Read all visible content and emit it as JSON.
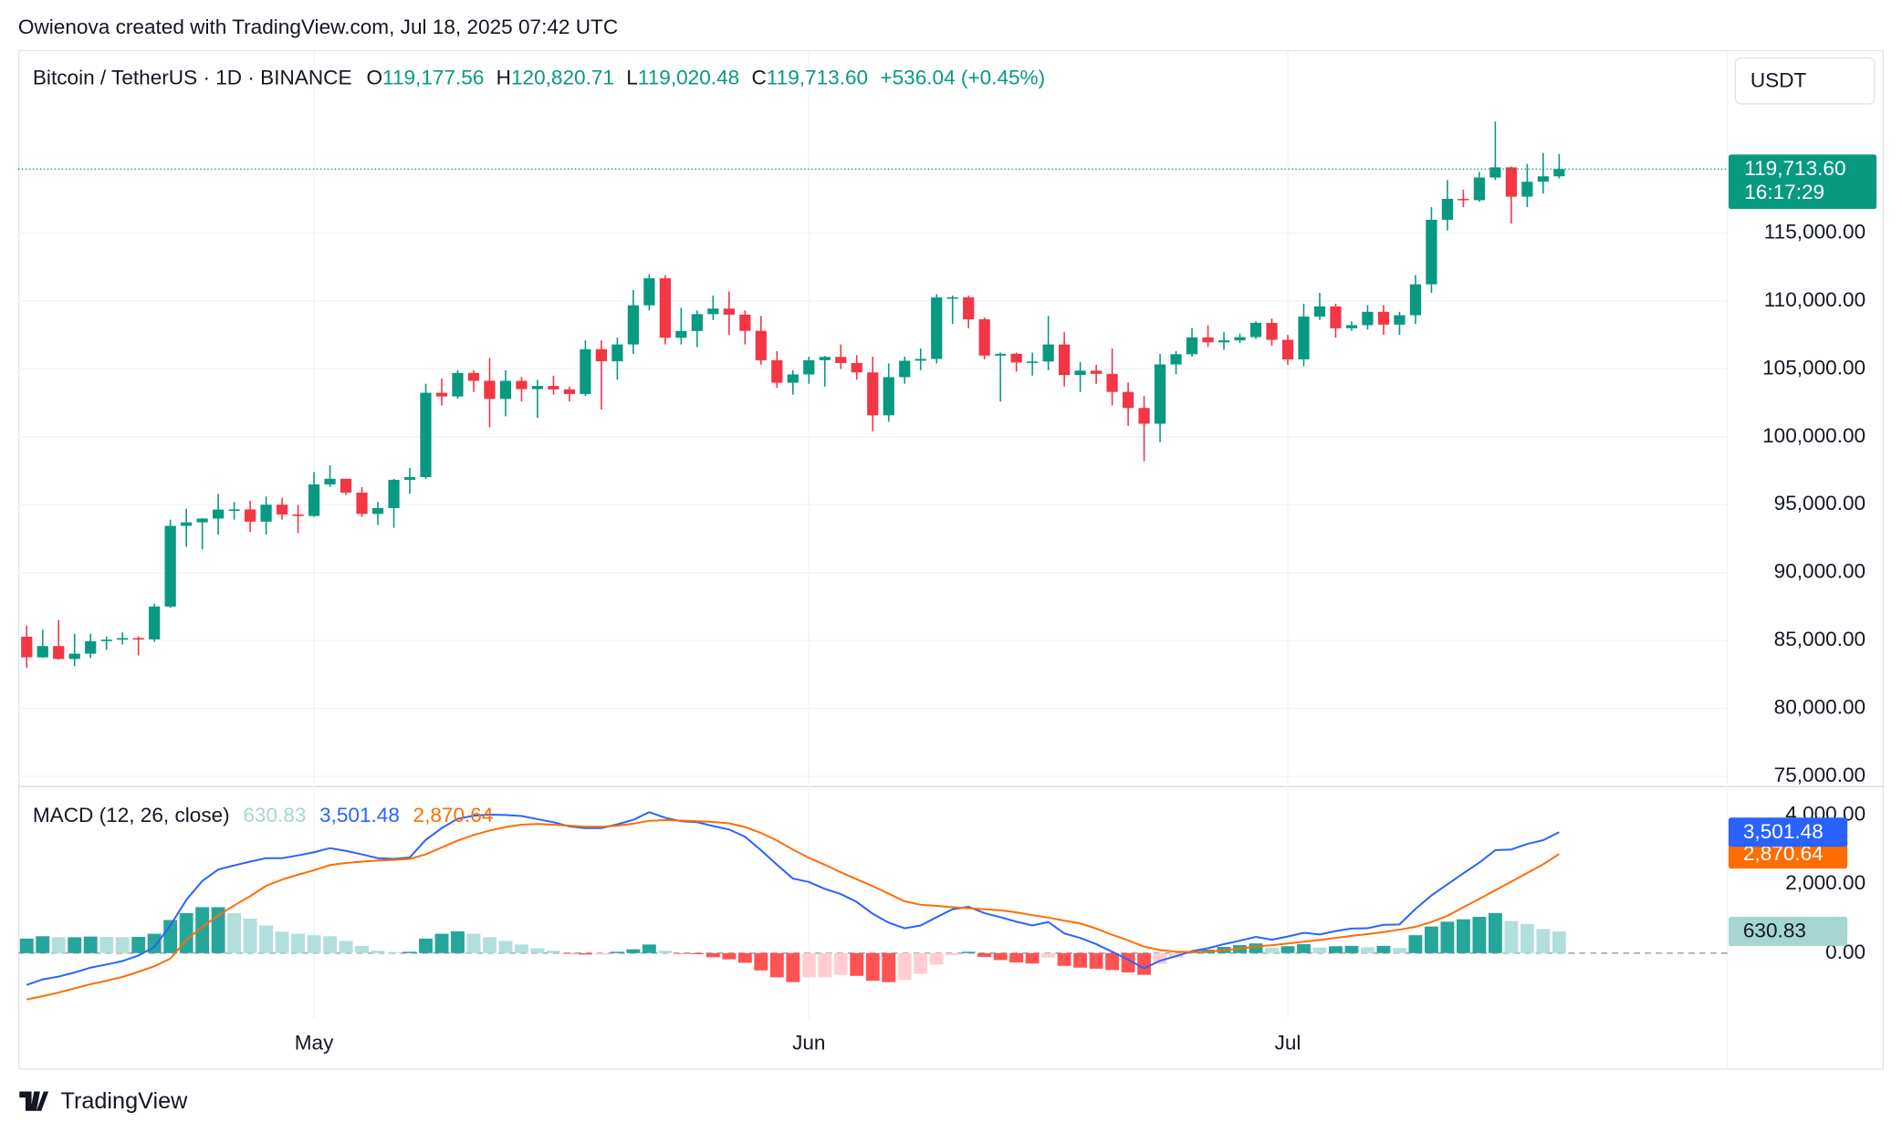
{
  "attribution": "Owienova created with TradingView.com, Jul 18, 2025 07:42 UTC",
  "brand": "TradingView",
  "currency": "USDT",
  "chart_data": [
    {
      "type": "candlestick",
      "title": "Bitcoin / TetherUS · 1D · BINANCE",
      "ohlc_labels": [
        {
          "name": "O",
          "value": "119,177.56"
        },
        {
          "name": "H",
          "value": "120,820.71"
        },
        {
          "name": "L",
          "value": "119,020.48"
        },
        {
          "name": "C",
          "value": "119,713.60"
        }
      ],
      "change_label": "+536.04 (+0.45%)",
      "last_price_label": "119,713.60",
      "countdown": "16:17:29",
      "up_color": "#089981",
      "down_color": "#f23645",
      "open": [
        85280,
        83760,
        84590,
        83640,
        84030,
        84950,
        85060,
        85180,
        85080,
        87500,
        93440,
        93700,
        93980,
        94640,
        94650,
        93750,
        95000,
        94280,
        94170,
        96490,
        96910,
        95890,
        94320,
        94750,
        96830,
        97030,
        103240,
        102970,
        104700,
        104120,
        102790,
        104120,
        103510,
        103740,
        103490,
        103150,
        106450,
        105560,
        106800,
        109680,
        111670,
        107290,
        107790,
        109030,
        109440,
        108990,
        107800,
        105640,
        103980,
        104590,
        105640,
        105880,
        105430,
        104740,
        101580,
        104390,
        105600,
        105730,
        110260,
        110270,
        108650,
        105980,
        106110,
        105470,
        105540,
        106800,
        104550,
        104870,
        104630,
        103300,
        102120,
        100960,
        105330,
        106080,
        107320,
        106950,
        107100,
        107340,
        108390,
        107140,
        105700,
        108850,
        109600,
        107990,
        108220,
        109200,
        108260,
        108950,
        111230,
        115980,
        117520,
        117420,
        119090,
        119840,
        117680,
        118780,
        119177.56
      ],
      "high": [
        86100,
        85800,
        86500,
        85500,
        85500,
        85300,
        85600,
        85300,
        87700,
        93900,
        94700,
        94000,
        95800,
        95200,
        95300,
        95600,
        95500,
        95000,
        97400,
        97900,
        96900,
        96300,
        95200,
        96900,
        97700,
        103900,
        104300,
        104900,
        104900,
        105800,
        104900,
        104400,
        104200,
        104500,
        103700,
        107100,
        107100,
        107300,
        110800,
        111980,
        111900,
        109500,
        109300,
        110400,
        110700,
        109300,
        108900,
        106300,
        104900,
        105900,
        105950,
        106800,
        106000,
        105900,
        105400,
        105900,
        106500,
        110500,
        110400,
        110400,
        108800,
        106200,
        106200,
        106200,
        108900,
        107700,
        105500,
        105300,
        106500,
        104000,
        103000,
        106100,
        106300,
        108000,
        108200,
        107700,
        107600,
        108500,
        108700,
        107500,
        109800,
        110600,
        109800,
        108500,
        109700,
        109700,
        109200,
        111900,
        116900,
        118900,
        118200,
        119500,
        123218,
        119900,
        120100,
        120900,
        120820.71
      ],
      "low": [
        83000,
        83700,
        83600,
        83100,
        83700,
        84300,
        84700,
        83900,
        84900,
        87400,
        91900,
        91700,
        92800,
        93900,
        93000,
        92800,
        93900,
        92900,
        94100,
        96300,
        95700,
        94100,
        93500,
        93300,
        95800,
        96900,
        102300,
        102800,
        103300,
        100700,
        101500,
        102600,
        101400,
        103100,
        102600,
        103000,
        102000,
        104200,
        106100,
        109300,
        106800,
        106800,
        106600,
        108600,
        107500,
        106800,
        105300,
        103600,
        103100,
        103900,
        103700,
        105000,
        104200,
        100400,
        101100,
        103900,
        104900,
        105400,
        108300,
        108000,
        105700,
        102600,
        104800,
        104500,
        104900,
        103700,
        103300,
        103900,
        102300,
        100800,
        98200,
        99600,
        104600,
        105900,
        106600,
        106400,
        106900,
        107200,
        106700,
        105300,
        105200,
        108600,
        107300,
        107800,
        107900,
        107500,
        107500,
        108300,
        110600,
        115200,
        116900,
        117300,
        118900,
        115700,
        116900,
        117900,
        119020.48
      ],
      "close": [
        83760,
        84590,
        83640,
        84030,
        84950,
        85060,
        85180,
        85080,
        87500,
        93440,
        93700,
        93980,
        94640,
        94650,
        93750,
        95000,
        94280,
        94170,
        96490,
        96910,
        95890,
        94320,
        94750,
        96830,
        97030,
        103240,
        102970,
        104700,
        104120,
        102790,
        104120,
        103510,
        103740,
        103490,
        103150,
        106450,
        105560,
        106800,
        109680,
        111670,
        107290,
        107790,
        109030,
        109440,
        108990,
        107800,
        105640,
        103980,
        104590,
        105640,
        105880,
        105430,
        104740,
        101580,
        104390,
        105600,
        105730,
        110260,
        110270,
        108650,
        105980,
        106110,
        105470,
        105540,
        106800,
        104550,
        104870,
        104630,
        103300,
        102120,
        100960,
        105330,
        106080,
        107320,
        106950,
        107100,
        107340,
        108390,
        107140,
        105700,
        108850,
        109600,
        107990,
        108220,
        109200,
        108260,
        108950,
        111230,
        115980,
        117520,
        117420,
        119090,
        119840,
        117680,
        118780,
        119180,
        119713.6
      ],
      "ylim": [
        74290,
        128390
      ],
      "yticks": [
        {
          "value": 75000,
          "label": "75,000.00"
        },
        {
          "value": 80000,
          "label": "80,000.00"
        },
        {
          "value": 85000,
          "label": "85,000.00"
        },
        {
          "value": 90000,
          "label": "90,000.00"
        },
        {
          "value": 95000,
          "label": "95,000.00"
        },
        {
          "value": 100000,
          "label": "100,000.00"
        },
        {
          "value": 105000,
          "label": "105,000.00"
        },
        {
          "value": 110000,
          "label": "110,000.00"
        },
        {
          "value": 115000,
          "label": "115,000.00"
        }
      ],
      "xticks": [
        {
          "value": 18,
          "label": "May"
        },
        {
          "value": 49,
          "label": "Jun"
        },
        {
          "value": 79,
          "label": "Jul"
        }
      ],
      "grid": true
    },
    {
      "type": "macd",
      "title": "MACD (12, 26, close)",
      "histogram_colors": [
        "#26a69a",
        "#b2dfdb",
        "#ffcdd2",
        "#ff5252"
      ],
      "series": [
        {
          "color": "#a5d6d0",
          "last_label": "630.83",
          "values": [
            420,
            490,
            460,
            460,
            480,
            470,
            460,
            470,
            560,
            960,
            1160,
            1330,
            1330,
            1160,
            1000,
            800,
            620,
            560,
            520,
            490,
            350,
            210,
            70,
            30,
            40,
            420,
            560,
            630,
            560,
            460,
            350,
            250,
            140,
            70,
            -20,
            -40,
            -40,
            40,
            110,
            250,
            70,
            -20,
            -30,
            -120,
            -180,
            -280,
            -500,
            -700,
            -840,
            -700,
            -700,
            -630,
            -660,
            -800,
            -840,
            -780,
            -600,
            -330,
            -60,
            40,
            -110,
            -200,
            -270,
            -300,
            -130,
            -370,
            -420,
            -450,
            -490,
            -560,
            -630,
            -310,
            -130,
            30,
            100,
            180,
            230,
            280,
            160,
            200,
            260,
            160,
            200,
            210,
            170,
            210,
            150,
            520,
            770,
            910,
            980,
            1050,
            1160,
            930,
            840,
            700,
            630.83
          ]
        },
        {
          "color": "#2962ff",
          "last_label": "3,501.48",
          "values": [
            -920,
            -760,
            -680,
            -560,
            -420,
            -330,
            -230,
            -70,
            180,
            800,
            1540,
            2090,
            2420,
            2540,
            2650,
            2750,
            2750,
            2830,
            2920,
            3040,
            2960,
            2860,
            2750,
            2730,
            2770,
            3280,
            3620,
            3890,
            3980,
            4010,
            4000,
            3970,
            3880,
            3790,
            3670,
            3620,
            3620,
            3730,
            3860,
            4080,
            3920,
            3820,
            3790,
            3680,
            3580,
            3370,
            2980,
            2560,
            2160,
            2060,
            1860,
            1710,
            1480,
            1140,
            880,
            720,
            800,
            1040,
            1270,
            1340,
            1160,
            1040,
            910,
            800,
            900,
            570,
            440,
            260,
            40,
            -190,
            -440,
            -220,
            -90,
            60,
            140,
            260,
            360,
            470,
            390,
            480,
            590,
            540,
            640,
            710,
            720,
            820,
            830,
            1280,
            1670,
            1990,
            2310,
            2620,
            2980,
            3000,
            3160,
            3270,
            3501.48
          ]
        },
        {
          "color": "#ff6d00",
          "last_label": "2,870.64",
          "values": [
            -1340,
            -1250,
            -1140,
            -1020,
            -900,
            -800,
            -690,
            -540,
            -380,
            -160,
            380,
            760,
            1090,
            1380,
            1650,
            1950,
            2130,
            2270,
            2400,
            2550,
            2610,
            2650,
            2680,
            2700,
            2730,
            2860,
            3060,
            3260,
            3420,
            3550,
            3650,
            3720,
            3740,
            3720,
            3690,
            3660,
            3660,
            3690,
            3750,
            3830,
            3850,
            3840,
            3820,
            3800,
            3760,
            3650,
            3480,
            3260,
            3000,
            2760,
            2560,
            2340,
            2140,
            1940,
            1720,
            1500,
            1400,
            1370,
            1330,
            1300,
            1270,
            1240,
            1180,
            1100,
            1030,
            940,
            860,
            710,
            530,
            370,
            190,
            90,
            40,
            30,
            40,
            80,
            130,
            190,
            230,
            280,
            330,
            380,
            440,
            500,
            550,
            610,
            680,
            760,
            900,
            1080,
            1330,
            1570,
            1820,
            2070,
            2320,
            2570,
            2870.64
          ]
        }
      ],
      "ylim": [
        -1900,
        4700
      ],
      "yticks": [
        {
          "value": 0,
          "label": "0.00"
        },
        {
          "value": 2000,
          "label": "2,000.00"
        },
        {
          "value": 4000,
          "label": "4,000.00"
        }
      ]
    }
  ]
}
